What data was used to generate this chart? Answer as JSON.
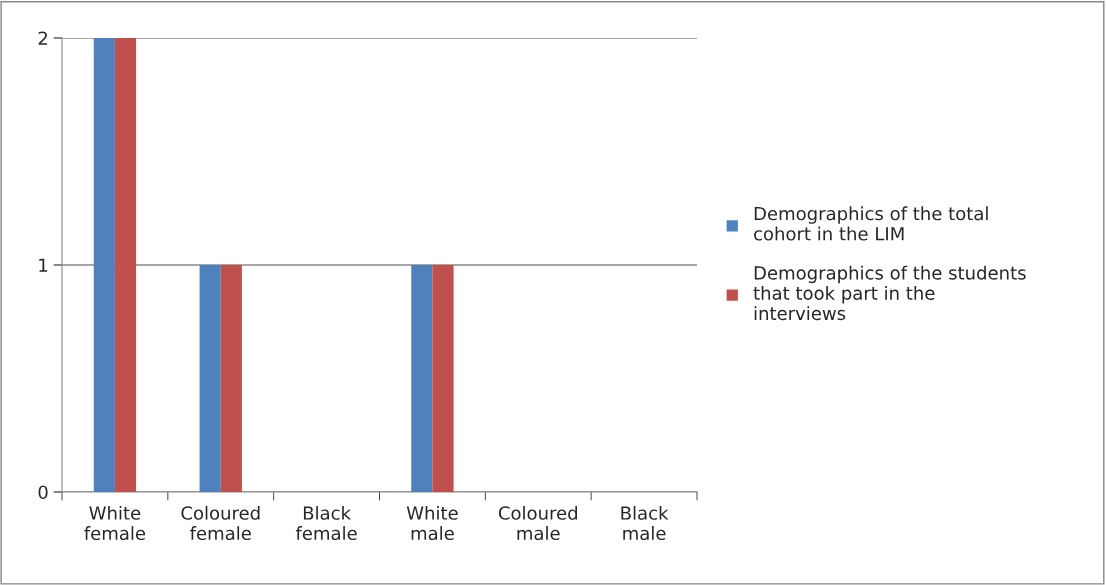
{
  "chart_data": {
    "type": "bar",
    "categories": [
      "White\nfemale",
      "Coloured\nfemale",
      "Black\nfemale",
      "White\nmale",
      "Coloured\nmale",
      "Black\nmale"
    ],
    "series": [
      {
        "name": "Demographics of the total\ncohort in the LIM",
        "color": "#4f81bd",
        "values": [
          2,
          1,
          0,
          1,
          0,
          0
        ]
      },
      {
        "name": "Demographics of the students\nthat took part in the\ninterviews",
        "color": "#c0504d",
        "values": [
          2,
          1,
          0,
          1,
          0,
          0
        ]
      }
    ],
    "ylim": [
      0,
      2
    ],
    "yticks": [
      0,
      1,
      2
    ],
    "grid": "y",
    "legend": "right"
  }
}
